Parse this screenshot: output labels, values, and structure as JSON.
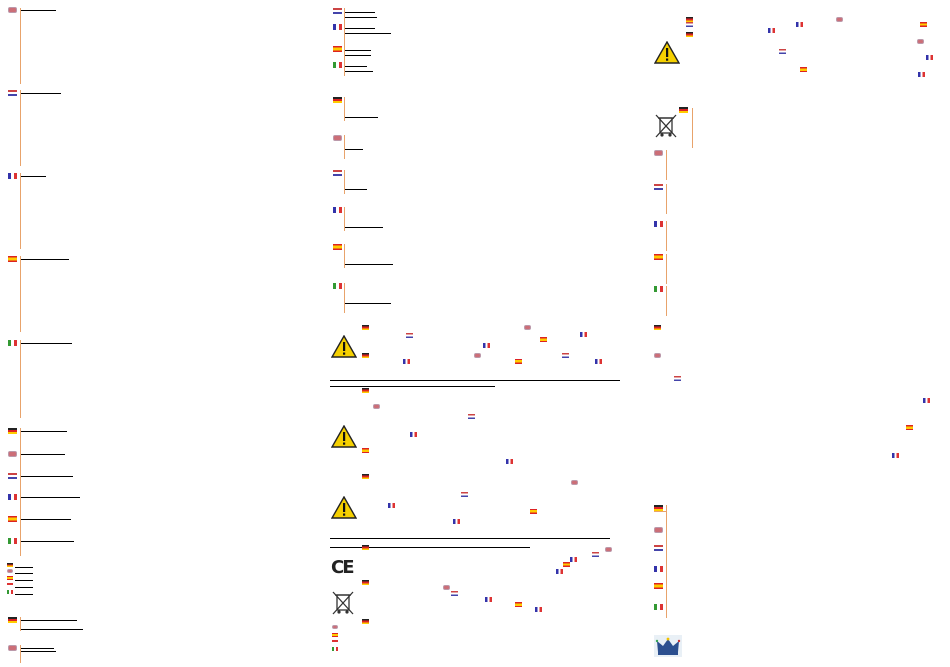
{
  "document": {
    "language_flags": [
      "uk",
      "nl",
      "de",
      "fr",
      "es",
      "it"
    ],
    "icons": [
      "warning-icon",
      "weee-bin-icon",
      "ce-mark-icon",
      "crown-logo-icon"
    ],
    "ce_mark": "CE"
  }
}
